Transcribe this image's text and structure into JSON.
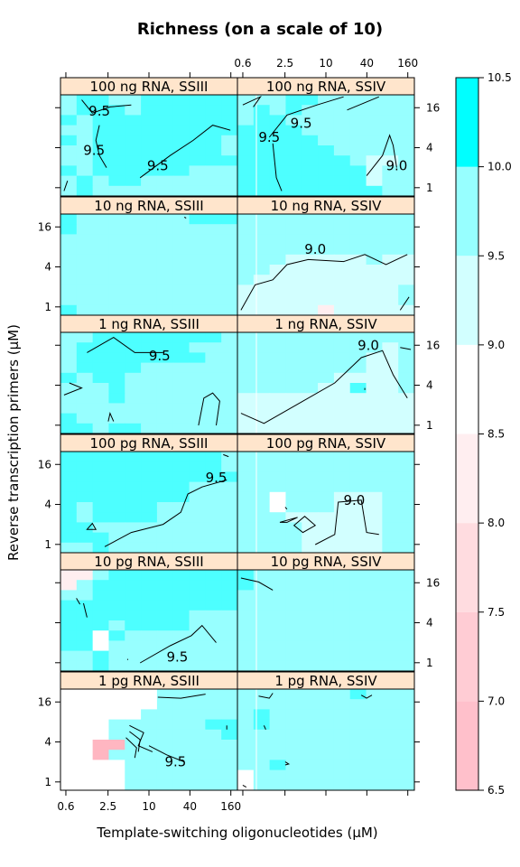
{
  "chart_data": {
    "type": "heatmap",
    "title": "Richness (on a scale of 10)",
    "xlabel": "Template-switching oligonucleotides (µM)",
    "ylabel": "Reverse transcription primers (µM)",
    "x_ticks": [
      "0.6",
      "2.5",
      "10",
      "40",
      "160"
    ],
    "y_ticks": [
      "1",
      "4",
      "16"
    ],
    "scale": "log",
    "colorbar": {
      "ticks": [
        "6.5",
        "7.0",
        "7.5",
        "8.0",
        "8.5",
        "9.0",
        "9.5",
        "10.0",
        "10.5"
      ],
      "range": [
        6.5,
        10.5
      ],
      "bins": [
        {
          "from": 6.5,
          "to": 7.0,
          "color": "#FFC0CB"
        },
        {
          "from": 7.0,
          "to": 7.5,
          "color": "#FFCCD4"
        },
        {
          "from": 7.5,
          "to": 8.0,
          "color": "#FFDCE0"
        },
        {
          "from": 8.0,
          "to": 8.5,
          "color": "#FFEEF0"
        },
        {
          "from": 8.5,
          "to": 9.0,
          "color": "#FFFFFF"
        },
        {
          "from": 9.0,
          "to": 9.5,
          "color": "#D2FFFF"
        },
        {
          "from": 9.5,
          "to": 10.0,
          "color": "#97FFFF"
        },
        {
          "from": 10.0,
          "to": 10.5,
          "color": "#4DFFFF"
        }
      ],
      "top_color": "#00FFFF"
    },
    "panels": [
      {
        "label": "100 ng RNA, SSIII",
        "contour_labels": [
          "9.5",
          "9.5",
          "9.5"
        ]
      },
      {
        "label": "100 ng RNA, SSIV",
        "contour_labels": [
          "9.5",
          "9.5",
          "9.0"
        ]
      },
      {
        "label": "10 ng RNA, SSIII",
        "contour_labels": []
      },
      {
        "label": "10 ng RNA, SSIV",
        "contour_labels": [
          "9.0"
        ]
      },
      {
        "label": "1 ng RNA, SSIII",
        "contour_labels": [
          "9.5"
        ]
      },
      {
        "label": "1 ng RNA, SSIV",
        "contour_labels": [
          "9.0"
        ]
      },
      {
        "label": "100 pg RNA, SSIII",
        "contour_labels": [
          "9.5"
        ]
      },
      {
        "label": "100 pg RNA, SSIV",
        "contour_labels": [
          "9.0"
        ]
      },
      {
        "label": "10 pg RNA, SSIII",
        "contour_labels": [
          "9.5"
        ]
      },
      {
        "label": "10 pg RNA, SSIV",
        "contour_labels": []
      },
      {
        "label": "1 pg RNA, SSIII",
        "contour_labels": [
          "9.5"
        ]
      },
      {
        "label": "1 pg RNA, SSIV",
        "contour_labels": []
      }
    ]
  }
}
